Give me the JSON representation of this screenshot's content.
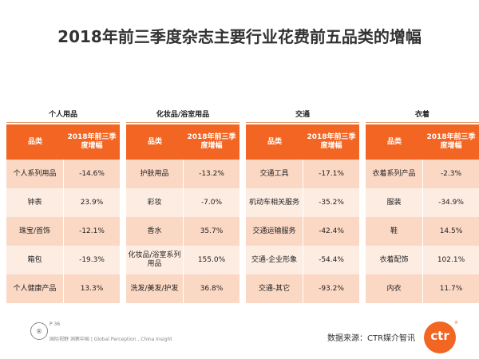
{
  "title": "2018年前三季度杂志主要行业花费前五品类的增幅",
  "header": {
    "col1": "品类",
    "col2": "2018年前三季度增幅"
  },
  "groups": [
    {
      "name": "个人用品",
      "rows": [
        {
          "item": "个人系列用品",
          "value": "-14.6%"
        },
        {
          "item": "钟表",
          "value": "23.9%"
        },
        {
          "item": "珠宝/首饰",
          "value": "-12.1%"
        },
        {
          "item": "箱包",
          "value": "-19.3%"
        },
        {
          "item": "个人健康产品",
          "value": "13.3%"
        }
      ]
    },
    {
      "name": "化妆品/浴室用品",
      "rows": [
        {
          "item": "护肤用品",
          "value": "-13.2%"
        },
        {
          "item": "彩妆",
          "value": "-7.0%"
        },
        {
          "item": "香水",
          "value": "35.7%"
        },
        {
          "item": "化妆品/浴室系列用品",
          "value": "155.0%"
        },
        {
          "item": "洗发/美发/护发",
          "value": "36.8%"
        }
      ]
    },
    {
      "name": "交通",
      "rows": [
        {
          "item": "交通工具",
          "value": "-17.1%"
        },
        {
          "item": "机动车相关服务",
          "value": "-35.2%"
        },
        {
          "item": "交通运输服务",
          "value": "-42.4%"
        },
        {
          "item": "交通-企业形象",
          "value": "-54.4%"
        },
        {
          "item": "交通-其它",
          "value": "-93.2%"
        }
      ]
    },
    {
      "name": "衣着",
      "rows": [
        {
          "item": "衣着系列产品",
          "value": "-2.3%"
        },
        {
          "item": "服装",
          "value": "-34.9%"
        },
        {
          "item": "鞋",
          "value": "14.5%"
        },
        {
          "item": "衣着配饰",
          "value": "102.1%"
        },
        {
          "item": "内衣",
          "value": "11.7%"
        }
      ]
    }
  ],
  "footer": {
    "page": "P 36",
    "brand_line": "国际视野 洞察中国 | Global Perception , China Insight",
    "badge": "®",
    "source": "数据来源：CTR媒介智讯",
    "logo_text": "ctr",
    "logo_sup": "®"
  }
}
